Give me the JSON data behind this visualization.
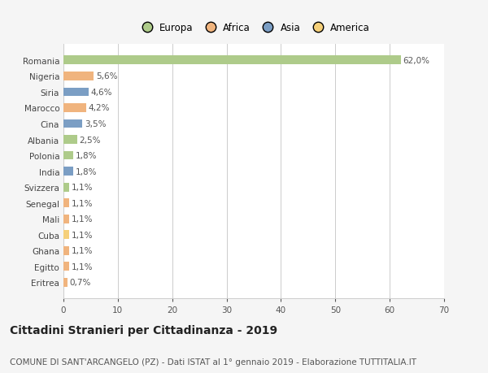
{
  "countries": [
    "Romania",
    "Nigeria",
    "Siria",
    "Marocco",
    "Cina",
    "Albania",
    "Polonia",
    "India",
    "Svizzera",
    "Senegal",
    "Mali",
    "Cuba",
    "Ghana",
    "Egitto",
    "Eritrea"
  ],
  "values": [
    62.0,
    5.6,
    4.6,
    4.2,
    3.5,
    2.5,
    1.8,
    1.8,
    1.1,
    1.1,
    1.1,
    1.1,
    1.1,
    1.1,
    0.7
  ],
  "labels": [
    "62,0%",
    "5,6%",
    "4,6%",
    "4,2%",
    "3,5%",
    "2,5%",
    "1,8%",
    "1,8%",
    "1,1%",
    "1,1%",
    "1,1%",
    "1,1%",
    "1,1%",
    "1,1%",
    "0,7%"
  ],
  "bar_colors": [
    "#aecb8a",
    "#f0b47e",
    "#7b9ec4",
    "#f0b47e",
    "#7b9ec4",
    "#aecb8a",
    "#aecb8a",
    "#7b9ec4",
    "#aecb8a",
    "#f0b47e",
    "#f0b47e",
    "#f5d07a",
    "#f0b47e",
    "#f0b47e",
    "#f0b47e"
  ],
  "legend_labels": [
    "Europa",
    "Africa",
    "Asia",
    "America"
  ],
  "legend_colors": [
    "#aecb8a",
    "#f0b47e",
    "#7b9ec4",
    "#f5d07a"
  ],
  "xlim": [
    0,
    70
  ],
  "xticks": [
    0,
    10,
    20,
    30,
    40,
    50,
    60,
    70
  ],
  "outer_bg": "#f5f5f5",
  "plot_bg": "#ffffff",
  "grid_color": "#cccccc",
  "title": "Cittadini Stranieri per Cittadinanza - 2019",
  "subtitle": "COMUNE DI SANT'ARCANGELO (PZ) - Dati ISTAT al 1° gennaio 2019 - Elaborazione TUTTITALIA.IT",
  "title_fontsize": 10,
  "subtitle_fontsize": 7.5,
  "label_fontsize": 7.5,
  "tick_fontsize": 7.5,
  "legend_fontsize": 8.5
}
